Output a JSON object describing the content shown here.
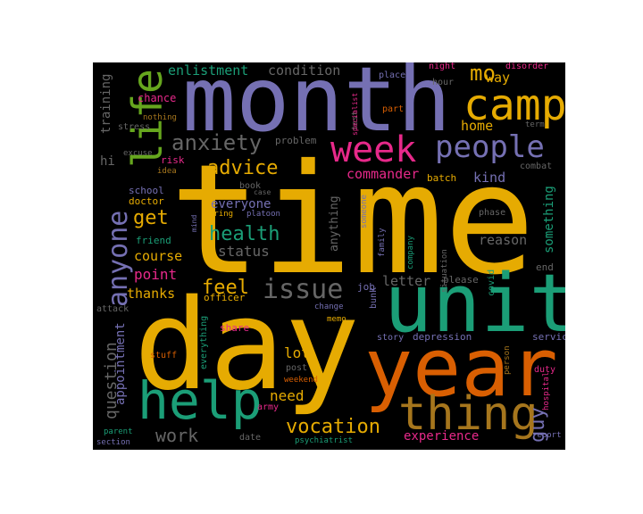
{
  "colors": {
    "gold": "#e6ab02",
    "purple": "#7570b3",
    "teal": "#1b9e77",
    "pink": "#e7298a",
    "green": "#66a61e",
    "orange": "#d95f02",
    "tan": "#a6761d",
    "gray": "#666666"
  },
  "words": [
    {
      "text": "time",
      "color": "gold"
    },
    {
      "text": "day",
      "color": "gold"
    },
    {
      "text": "month",
      "color": "purple"
    },
    {
      "text": "unit",
      "color": "teal"
    },
    {
      "text": "year",
      "color": "orange"
    },
    {
      "text": "help",
      "color": "teal"
    },
    {
      "text": "thing",
      "color": "tan"
    },
    {
      "text": "camp",
      "color": "gold"
    },
    {
      "text": "life",
      "color": "green"
    },
    {
      "text": "week",
      "color": "pink"
    },
    {
      "text": "people",
      "color": "purple"
    },
    {
      "text": "anyone",
      "color": "purple"
    },
    {
      "text": "issue",
      "color": "gray"
    },
    {
      "text": "anxiety",
      "color": "gray"
    },
    {
      "text": "mo",
      "color": "gold"
    },
    {
      "text": "advice",
      "color": "gold"
    },
    {
      "text": "health",
      "color": "teal"
    },
    {
      "text": "get",
      "color": "gold"
    },
    {
      "text": "feel",
      "color": "gold"
    },
    {
      "text": "vocation",
      "color": "gold"
    },
    {
      "text": "guy",
      "color": "purple"
    },
    {
      "text": "question",
      "color": "gray"
    },
    {
      "text": "work",
      "color": "gray"
    },
    {
      "text": "status",
      "color": "gray"
    },
    {
      "text": "enlistment",
      "color": "teal"
    },
    {
      "text": "condition",
      "color": "gray"
    },
    {
      "text": "point",
      "color": "pink"
    },
    {
      "text": "course",
      "color": "gold"
    },
    {
      "text": "thanks",
      "color": "gold"
    },
    {
      "text": "lot",
      "color": "gold"
    },
    {
      "text": "need",
      "color": "gold"
    },
    {
      "text": "experience",
      "color": "pink"
    },
    {
      "text": "reason",
      "color": "gray"
    },
    {
      "text": "commander",
      "color": "pink"
    },
    {
      "text": "home",
      "color": "gold"
    },
    {
      "text": "kind",
      "color": "purple"
    },
    {
      "text": "way",
      "color": "gold"
    },
    {
      "text": "anything",
      "color": "gray"
    },
    {
      "text": "something",
      "color": "teal"
    },
    {
      "text": "letter",
      "color": "gray"
    },
    {
      "text": "everyone",
      "color": "purple"
    },
    {
      "text": "appointment",
      "color": "purple"
    },
    {
      "text": "training",
      "color": "gray"
    },
    {
      "text": "hi",
      "color": "gray"
    },
    {
      "text": "chance",
      "color": "pink"
    },
    {
      "text": "stress",
      "color": "gray"
    },
    {
      "text": "risk",
      "color": "pink"
    },
    {
      "text": "idea",
      "color": "tan"
    },
    {
      "text": "excuse",
      "color": "gray"
    },
    {
      "text": "nothing",
      "color": "tan"
    },
    {
      "text": "school",
      "color": "purple"
    },
    {
      "text": "doctor",
      "color": "gold"
    },
    {
      "text": "friend",
      "color": "teal"
    },
    {
      "text": "mind",
      "color": "purple"
    },
    {
      "text": "book",
      "color": "gray"
    },
    {
      "text": "case",
      "color": "gray"
    },
    {
      "text": "bring",
      "color": "gold"
    },
    {
      "text": "platoon",
      "color": "purple"
    },
    {
      "text": "problem",
      "color": "gray"
    },
    {
      "text": "test",
      "color": "gray"
    },
    {
      "text": "place",
      "color": "purple"
    },
    {
      "text": "night",
      "color": "pink"
    },
    {
      "text": "disorder",
      "color": "pink"
    },
    {
      "text": "hour",
      "color": "gray"
    },
    {
      "text": "part",
      "color": "orange"
    },
    {
      "text": "term",
      "color": "gray"
    },
    {
      "text": "batch",
      "color": "gold"
    },
    {
      "text": "combat",
      "color": "gray"
    },
    {
      "text": "someone",
      "color": "purple"
    },
    {
      "text": "specialist",
      "color": "pink"
    },
    {
      "text": "family",
      "color": "purple"
    },
    {
      "text": "company",
      "color": "teal"
    },
    {
      "text": "situation",
      "color": "gray"
    },
    {
      "text": "phase",
      "color": "gray"
    },
    {
      "text": "end",
      "color": "gray"
    },
    {
      "text": "please",
      "color": "gray"
    },
    {
      "text": "job",
      "color": "purple"
    },
    {
      "text": "officer",
      "color": "gold"
    },
    {
      "text": "bunk",
      "color": "purple"
    },
    {
      "text": "change",
      "color": "purple"
    },
    {
      "text": "memo",
      "color": "gold"
    },
    {
      "text": "covid",
      "color": "teal"
    },
    {
      "text": "story",
      "color": "purple"
    },
    {
      "text": "depression",
      "color": "purple"
    },
    {
      "text": "service",
      "color": "purple"
    },
    {
      "text": "attack",
      "color": "gray"
    },
    {
      "text": "share",
      "color": "pink"
    },
    {
      "text": "everything",
      "color": "teal"
    },
    {
      "text": "stuff",
      "color": "orange"
    },
    {
      "text": "post",
      "color": "gray"
    },
    {
      "text": "weekend",
      "color": "orange"
    },
    {
      "text": "army",
      "color": "pink"
    },
    {
      "text": "date",
      "color": "gray"
    },
    {
      "text": "psychiatrist",
      "color": "teal"
    },
    {
      "text": "person",
      "color": "tan"
    },
    {
      "text": "duty",
      "color": "pink"
    },
    {
      "text": "hospital",
      "color": "pink"
    },
    {
      "text": "report",
      "color": "purple"
    },
    {
      "text": "parent",
      "color": "teal"
    },
    {
      "text": "section",
      "color": "purple"
    }
  ]
}
